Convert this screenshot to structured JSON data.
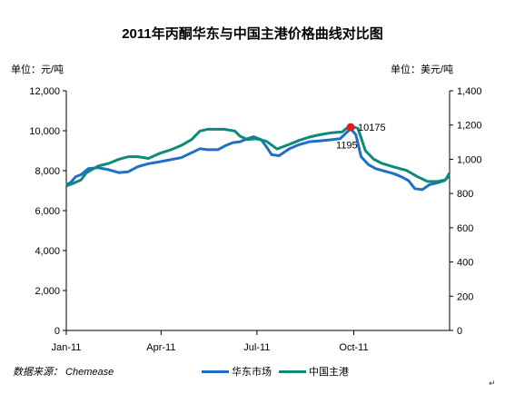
{
  "title": "2011年丙酮华东与中国主港价格曲线对比图",
  "left_unit": "单位：元/吨",
  "right_unit": "单位：美元/吨",
  "source": "数据来源： Chemease",
  "corner_mark": "↵",
  "colors": {
    "east_china": "#1f6fc5",
    "china_port": "#0d8a7a",
    "highlight": "#e41a1c",
    "axis": "#000000"
  },
  "chart_data": {
    "type": "line",
    "title": "2011年丙酮华东与中国主港价格曲线对比图",
    "x_range": [
      "2011-01-01",
      "2011-12-31"
    ],
    "x_ticks": [
      {
        "label": "Jan-11",
        "date": "2011-01-01"
      },
      {
        "label": "Apr-11",
        "date": "2011-04-01"
      },
      {
        "label": "Jul-11",
        "date": "2011-07-01"
      },
      {
        "label": "Oct-11",
        "date": "2011-10-01"
      }
    ],
    "y_left": {
      "min": 0,
      "max": 12000,
      "ticks": [
        0,
        2000,
        4000,
        6000,
        8000,
        10000,
        12000
      ],
      "tick_labels": [
        "0",
        "2,000",
        "4,000",
        "6,000",
        "8,000",
        "10,000",
        "12,000"
      ]
    },
    "y_right": {
      "min": 0,
      "max": 1400,
      "ticks": [
        0,
        200,
        400,
        600,
        800,
        1000,
        1200,
        1400
      ],
      "tick_labels": [
        "0",
        "200",
        "400",
        "600",
        "800",
        "1,000",
        "1,200",
        "1,400"
      ]
    },
    "grid": false,
    "legend_position": "bottom",
    "series": [
      {
        "name": "华东市场",
        "axis": "left",
        "color": "#1f6fc5",
        "points": [
          [
            "2011-01-01",
            7300
          ],
          [
            "2011-01-05",
            7400
          ],
          [
            "2011-01-10",
            7700
          ],
          [
            "2011-01-15",
            7800
          ],
          [
            "2011-01-22",
            8100
          ],
          [
            "2011-01-31",
            8150
          ],
          [
            "2011-02-10",
            8050
          ],
          [
            "2011-02-20",
            7900
          ],
          [
            "2011-03-01",
            7950
          ],
          [
            "2011-03-10",
            8200
          ],
          [
            "2011-03-20",
            8350
          ],
          [
            "2011-03-31",
            8450
          ],
          [
            "2011-04-10",
            8550
          ],
          [
            "2011-04-20",
            8650
          ],
          [
            "2011-04-30",
            8900
          ],
          [
            "2011-05-08",
            9100
          ],
          [
            "2011-05-15",
            9050
          ],
          [
            "2011-05-25",
            9050
          ],
          [
            "2011-06-01",
            9250
          ],
          [
            "2011-06-08",
            9400
          ],
          [
            "2011-06-15",
            9450
          ],
          [
            "2011-06-22",
            9600
          ],
          [
            "2011-06-28",
            9700
          ],
          [
            "2011-07-05",
            9550
          ],
          [
            "2011-07-10",
            9200
          ],
          [
            "2011-07-15",
            8800
          ],
          [
            "2011-07-22",
            8750
          ],
          [
            "2011-08-01",
            9100
          ],
          [
            "2011-08-10",
            9300
          ],
          [
            "2011-08-20",
            9450
          ],
          [
            "2011-08-31",
            9500
          ],
          [
            "2011-09-10",
            9550
          ],
          [
            "2011-09-18",
            9600
          ],
          [
            "2011-09-24",
            9900
          ],
          [
            "2011-09-28",
            10100
          ],
          [
            "2011-10-03",
            9800
          ],
          [
            "2011-10-08",
            8700
          ],
          [
            "2011-10-15",
            8300
          ],
          [
            "2011-10-22",
            8100
          ],
          [
            "2011-11-01",
            7950
          ],
          [
            "2011-11-08",
            7850
          ],
          [
            "2011-11-15",
            7700
          ],
          [
            "2011-11-22",
            7500
          ],
          [
            "2011-11-28",
            7100
          ],
          [
            "2011-12-05",
            7050
          ],
          [
            "2011-12-12",
            7300
          ],
          [
            "2011-12-20",
            7400
          ],
          [
            "2011-12-26",
            7500
          ],
          [
            "2011-12-31",
            7750
          ]
        ]
      },
      {
        "name": "中国主港",
        "axis": "right",
        "color": "#0d8a7a",
        "points": [
          [
            "2011-01-01",
            845
          ],
          [
            "2011-01-08",
            860
          ],
          [
            "2011-01-15",
            880
          ],
          [
            "2011-01-20",
            920
          ],
          [
            "2011-01-31",
            960
          ],
          [
            "2011-02-10",
            975
          ],
          [
            "2011-02-20",
            1000
          ],
          [
            "2011-03-01",
            1015
          ],
          [
            "2011-03-10",
            1015
          ],
          [
            "2011-03-20",
            1005
          ],
          [
            "2011-03-31",
            1035
          ],
          [
            "2011-04-10",
            1055
          ],
          [
            "2011-04-20",
            1080
          ],
          [
            "2011-04-30",
            1115
          ],
          [
            "2011-05-08",
            1165
          ],
          [
            "2011-05-15",
            1175
          ],
          [
            "2011-05-31",
            1175
          ],
          [
            "2011-06-10",
            1165
          ],
          [
            "2011-06-15",
            1135
          ],
          [
            "2011-06-22",
            1115
          ],
          [
            "2011-06-30",
            1120
          ],
          [
            "2011-07-10",
            1105
          ],
          [
            "2011-07-20",
            1060
          ],
          [
            "2011-07-31",
            1085
          ],
          [
            "2011-08-10",
            1110
          ],
          [
            "2011-08-20",
            1130
          ],
          [
            "2011-08-31",
            1145
          ],
          [
            "2011-09-10",
            1155
          ],
          [
            "2011-09-20",
            1160
          ],
          [
            "2011-09-26",
            1190
          ],
          [
            "2011-09-28",
            1195
          ],
          [
            "2011-10-05",
            1180
          ],
          [
            "2011-10-12",
            1050
          ],
          [
            "2011-10-20",
            1000
          ],
          [
            "2011-10-28",
            975
          ],
          [
            "2011-11-08",
            955
          ],
          [
            "2011-11-20",
            935
          ],
          [
            "2011-11-30",
            900
          ],
          [
            "2011-12-10",
            870
          ],
          [
            "2011-12-20",
            870
          ],
          [
            "2011-12-27",
            880
          ],
          [
            "2011-12-31",
            920
          ]
        ]
      }
    ],
    "annotations": [
      {
        "text": "10175",
        "date": "2011-09-28",
        "axis": "left",
        "value": 10175
      },
      {
        "text": "1195",
        "date": "2011-09-28",
        "axis": "right",
        "value": 1195
      }
    ]
  }
}
